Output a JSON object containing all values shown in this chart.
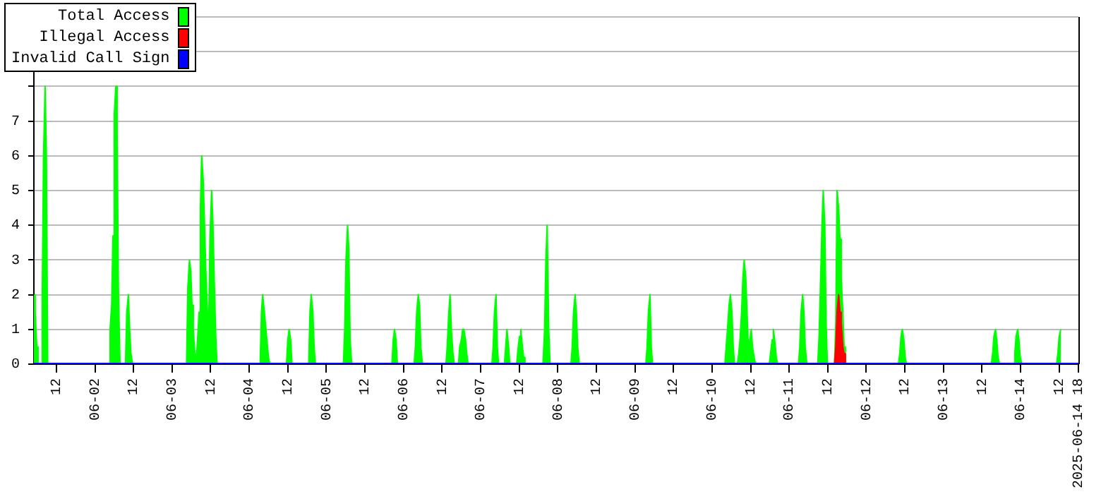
{
  "chart_data": {
    "type": "area",
    "legend": "top left",
    "grid": "y",
    "marker": "none",
    "xlim": [
      "2025-06-01T05:00",
      "2025-06-14T18:00"
    ],
    "xticks": [
      {
        "value": "2025-06-01T12:00",
        "label": "12"
      },
      {
        "value": "2025-06-02",
        "label": "06-02"
      },
      {
        "value": "2025-06-02T12:00",
        "label": "12"
      },
      {
        "value": "2025-06-03",
        "label": "06-03"
      },
      {
        "value": "2025-06-03T12:00",
        "label": "12"
      },
      {
        "value": "2025-06-04",
        "label": "06-04"
      },
      {
        "value": "2025-06-04T12:00",
        "label": "12"
      },
      {
        "value": "2025-06-05",
        "label": "06-05"
      },
      {
        "value": "2025-06-05T12:00",
        "label": "12"
      },
      {
        "value": "2025-06-06",
        "label": "06-06"
      },
      {
        "value": "2025-06-06T12:00",
        "label": "12"
      },
      {
        "value": "2025-06-07",
        "label": "06-07"
      },
      {
        "value": "2025-06-07T12:00",
        "label": "12"
      },
      {
        "value": "2025-06-08",
        "label": "06-08"
      },
      {
        "value": "2025-06-08T12:00",
        "label": "12"
      },
      {
        "value": "2025-06-09",
        "label": "06-09"
      },
      {
        "value": "2025-06-09T12:00",
        "label": "12"
      },
      {
        "value": "2025-06-10",
        "label": "06-10"
      },
      {
        "value": "2025-06-10T12:00",
        "label": "12"
      },
      {
        "value": "2025-06-11",
        "label": "06-11"
      },
      {
        "value": "2025-06-11T12:00",
        "label": "12"
      },
      {
        "value": "2025-06-12",
        "label": "06-12"
      },
      {
        "value": "2025-06-12T12:00",
        "label": "12"
      },
      {
        "value": "2025-06-13",
        "label": "06-13"
      },
      {
        "value": "2025-06-13T12:00",
        "label": "12"
      },
      {
        "value": "2025-06-14",
        "label": "06-14"
      },
      {
        "value": "2025-06-14T12:00",
        "label": "12"
      },
      {
        "value": "2025-06-14T18:00",
        "label": "2025-06-14 18"
      }
    ],
    "ylim": [
      0,
      10
    ],
    "yticks": [
      0,
      1,
      2,
      3,
      4,
      5,
      6,
      7,
      {
        "value": 8,
        "label": null
      },
      {
        "value": 9,
        "label": null
      },
      {
        "value": 10,
        "label": null
      }
    ],
    "series": [
      {
        "name": "Total Access",
        "color": "#00ff00",
        "x": [
          "2025-06-01T05:00",
          "2025-06-01T05:24",
          "2025-06-01T05:54",
          "2025-06-01T06:18",
          "2025-06-01T07:12",
          "2025-06-01T07:36",
          "2025-06-01T08:00",
          "2025-06-01T08:30",
          "2025-06-01T08:54",
          "2025-06-01T09:18",
          "2025-06-02T04:18",
          "2025-06-02T04:42",
          "2025-06-02T05:12",
          "2025-06-02T05:36",
          "2025-06-02T06:00",
          "2025-06-02T06:30",
          "2025-06-02T06:54",
          "2025-06-02T07:18",
          "2025-06-02T07:48",
          "2025-06-02T09:30",
          "2025-06-02T09:54",
          "2025-06-02T10:24",
          "2025-06-02T10:48",
          "2025-06-02T11:12",
          "2025-06-02T11:42",
          "2025-06-03T04:30",
          "2025-06-03T04:54",
          "2025-06-03T05:24",
          "2025-06-03T05:48",
          "2025-06-03T06:12",
          "2025-06-03T06:36",
          "2025-06-03T07:06",
          "2025-06-03T07:30",
          "2025-06-03T08:24",
          "2025-06-03T08:48",
          "2025-06-03T09:12",
          "2025-06-03T09:42",
          "2025-06-03T10:06",
          "2025-06-03T10:30",
          "2025-06-03T11:00",
          "2025-06-03T11:24",
          "2025-06-03T11:48",
          "2025-06-03T12:18",
          "2025-06-03T12:42",
          "2025-06-03T13:06",
          "2025-06-03T13:36",
          "2025-06-03T14:00",
          "2025-06-04T03:24",
          "2025-06-04T03:48",
          "2025-06-04T04:12",
          "2025-06-04T04:42",
          "2025-06-04T05:06",
          "2025-06-04T05:30",
          "2025-06-04T06:00",
          "2025-06-04T06:24",
          "2025-06-04T11:36",
          "2025-06-04T12:00",
          "2025-06-04T12:24",
          "2025-06-04T12:54",
          "2025-06-04T13:18",
          "2025-06-04T18:30",
          "2025-06-04T18:54",
          "2025-06-04T19:18",
          "2025-06-04T19:48",
          "2025-06-04T20:12",
          "2025-06-04T20:36",
          "2025-06-05T05:18",
          "2025-06-05T05:42",
          "2025-06-05T06:06",
          "2025-06-05T06:36",
          "2025-06-05T07:00",
          "2025-06-05T07:24",
          "2025-06-05T07:54",
          "2025-06-05T20:24",
          "2025-06-05T20:48",
          "2025-06-05T21:12",
          "2025-06-05T21:42",
          "2025-06-05T22:06",
          "2025-06-06T03:18",
          "2025-06-06T03:42",
          "2025-06-06T04:06",
          "2025-06-06T04:36",
          "2025-06-06T05:00",
          "2025-06-06T05:24",
          "2025-06-06T05:54",
          "2025-06-06T13:12",
          "2025-06-06T13:36",
          "2025-06-06T14:06",
          "2025-06-06T14:30",
          "2025-06-06T14:54",
          "2025-06-06T15:24",
          "2025-06-06T15:48",
          "2025-06-06T17:06",
          "2025-06-06T17:30",
          "2025-06-06T18:00",
          "2025-06-06T18:24",
          "2025-06-06T18:48",
          "2025-06-06T19:18",
          "2025-06-06T19:42",
          "2025-06-06T20:06",
          "2025-06-07T03:30",
          "2025-06-07T03:54",
          "2025-06-07T04:18",
          "2025-06-07T04:48",
          "2025-06-07T05:12",
          "2025-06-07T05:36",
          "2025-06-07T07:24",
          "2025-06-07T07:48",
          "2025-06-07T08:12",
          "2025-06-07T08:42",
          "2025-06-07T09:06",
          "2025-06-07T11:12",
          "2025-06-07T11:42",
          "2025-06-07T12:06",
          "2025-06-07T12:30",
          "2025-06-07T13:00",
          "2025-06-07T13:24",
          "2025-06-07T13:48",
          "2025-06-07T19:24",
          "2025-06-07T19:54",
          "2025-06-07T20:18",
          "2025-06-07T20:42",
          "2025-06-07T21:12",
          "2025-06-07T21:36",
          "2025-06-08T04:06",
          "2025-06-08T04:30",
          "2025-06-08T04:54",
          "2025-06-08T05:24",
          "2025-06-08T05:48",
          "2025-06-08T06:12",
          "2025-06-08T06:42",
          "2025-06-09T03:24",
          "2025-06-09T03:48",
          "2025-06-09T04:12",
          "2025-06-09T04:42",
          "2025-06-09T05:06",
          "2025-06-09T05:30",
          "2025-06-10T04:00",
          "2025-06-10T04:24",
          "2025-06-10T04:48",
          "2025-06-10T05:18",
          "2025-06-10T05:42",
          "2025-06-10T06:12",
          "2025-06-10T06:36",
          "2025-06-10T07:00",
          "2025-06-10T07:54",
          "2025-06-10T08:18",
          "2025-06-10T08:42",
          "2025-06-10T09:12",
          "2025-06-10T09:36",
          "2025-06-10T10:00",
          "2025-06-10T10:30",
          "2025-06-10T10:54",
          "2025-06-10T11:18",
          "2025-06-10T11:48",
          "2025-06-10T12:12",
          "2025-06-10T12:36",
          "2025-06-10T13:06",
          "2025-06-10T13:30",
          "2025-06-10T17:48",
          "2025-06-10T18:12",
          "2025-06-10T18:42",
          "2025-06-10T19:06",
          "2025-06-10T19:30",
          "2025-06-10T20:00",
          "2025-06-10T20:24",
          "2025-06-11T02:54",
          "2025-06-11T03:18",
          "2025-06-11T03:42",
          "2025-06-11T04:12",
          "2025-06-11T04:36",
          "2025-06-11T05:00",
          "2025-06-11T05:30",
          "2025-06-11T08:54",
          "2025-06-11T09:18",
          "2025-06-11T09:48",
          "2025-06-11T10:12",
          "2025-06-11T10:36",
          "2025-06-11T11:06",
          "2025-06-11T11:30",
          "2025-06-11T11:54",
          "2025-06-11T14:06",
          "2025-06-11T14:30",
          "2025-06-11T14:54",
          "2025-06-11T15:24",
          "2025-06-11T15:48",
          "2025-06-11T16:12",
          "2025-06-11T16:42",
          "2025-06-11T17:06",
          "2025-06-11T17:30",
          "2025-06-12T10:00",
          "2025-06-12T10:24",
          "2025-06-12T10:48",
          "2025-06-12T11:12",
          "2025-06-12T11:42",
          "2025-06-12T12:06",
          "2025-06-12T12:30",
          "2025-06-13T14:54",
          "2025-06-13T15:18",
          "2025-06-13T15:42",
          "2025-06-13T16:12",
          "2025-06-13T16:36",
          "2025-06-13T17:00",
          "2025-06-13T17:30",
          "2025-06-13T21:48",
          "2025-06-13T22:12",
          "2025-06-13T22:36",
          "2025-06-13T23:06",
          "2025-06-13T23:30",
          "2025-06-13T23:54",
          "2025-06-14T00:24",
          "2025-06-14T11:12",
          "2025-06-14T11:36",
          "2025-06-14T12:00",
          "2025-06-14T12:30"
        ],
        "values": [
          2,
          1.5,
          0.5,
          0,
          0,
          2,
          6,
          8,
          6,
          0,
          0,
          1,
          1.7,
          3.7,
          7.2,
          8,
          6.7,
          2.2,
          0,
          0,
          1.5,
          2,
          1,
          0.3,
          0,
          0,
          2.2,
          3,
          2.7,
          1.7,
          1,
          0.3,
          0,
          1.5,
          4.5,
          6,
          5.3,
          4,
          2.7,
          1.5,
          1.2,
          3.7,
          5,
          4.1,
          2.5,
          0.8,
          0,
          0,
          1.5,
          2,
          1.5,
          1.1,
          0.7,
          0.2,
          0,
          0,
          0.7,
          1,
          0.7,
          0,
          0,
          1.5,
          2,
          1.5,
          0.5,
          0,
          0,
          1,
          3,
          4,
          3.3,
          0.7,
          0,
          0,
          0.7,
          1,
          0.7,
          0,
          0,
          0.5,
          1.5,
          2,
          1.7,
          0.5,
          0,
          0,
          0.5,
          1.5,
          2,
          1,
          0.3,
          0,
          0,
          0.5,
          0.7,
          1,
          1,
          0.7,
          0.3,
          0,
          0,
          0.5,
          1.5,
          2,
          0.5,
          0,
          0,
          0.5,
          1,
          0.5,
          0,
          0,
          0.5,
          0.8,
          1,
          0.5,
          0.2,
          0,
          0,
          1,
          3,
          4,
          1,
          0,
          0,
          0.5,
          1.5,
          2,
          1.5,
          0.5,
          0,
          0,
          0.5,
          1.5,
          2,
          0.5,
          0,
          0,
          0.5,
          1,
          1.7,
          2,
          1.5,
          0.5,
          0,
          0,
          0.3,
          0.7,
          1.5,
          2.5,
          3,
          2.5,
          1.5,
          0.5,
          0.7,
          1,
          0.5,
          0.2,
          0,
          0,
          0.3,
          0.7,
          1,
          0.7,
          0.2,
          0,
          0,
          0.5,
          1.5,
          2,
          1.5,
          0.5,
          0,
          0,
          0.8,
          2.5,
          4,
          5,
          4,
          1.2,
          0,
          0,
          1.2,
          5,
          4.5,
          3.6,
          2.5,
          1.5,
          0.5,
          0,
          0,
          0.3,
          0.8,
          1,
          0.7,
          0.2,
          0,
          0,
          0.3,
          0.8,
          1,
          0.7,
          0.2,
          0,
          0,
          0.3,
          0.8,
          1,
          0.7,
          0.2,
          0,
          0,
          0.3,
          0.8,
          1
        ]
      },
      {
        "name": "Illegal Access",
        "color": "#ff0000",
        "type": "area",
        "x": [
          "2025-06-11T14:06",
          "2025-06-11T14:30",
          "2025-06-11T14:54",
          "2025-06-11T15:24",
          "2025-06-11T15:48",
          "2025-06-11T16:12",
          "2025-06-11T16:42",
          "2025-06-11T17:06",
          "2025-06-11T17:30"
        ],
        "values": [
          0,
          0.5,
          1.5,
          2,
          1.5,
          1.2,
          0.5,
          0.3,
          0
        ]
      },
      {
        "name": "Invalid Call Sign",
        "color": "#0000ff",
        "type": "line",
        "x": [
          "2025-06-01T05:00",
          "2025-06-14T18:00"
        ],
        "values": [
          0,
          0
        ]
      }
    ]
  }
}
